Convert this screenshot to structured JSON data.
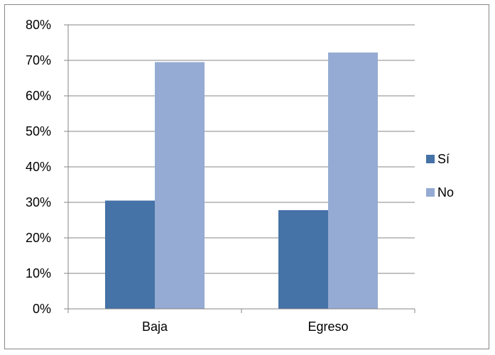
{
  "chart_data": {
    "type": "bar",
    "categories": [
      "Baja",
      "Egreso"
    ],
    "series": [
      {
        "name": "Sí",
        "values": [
          30.5,
          27.8
        ],
        "color": "#4572A7"
      },
      {
        "name": "No",
        "values": [
          69.5,
          72.2
        ],
        "color": "#95ABD3"
      }
    ],
    "y_ticks": [
      "0%",
      "10%",
      "20%",
      "30%",
      "40%",
      "50%",
      "60%",
      "70%",
      "80%"
    ],
    "ylim": [
      0,
      80
    ],
    "y_unit": "%",
    "grid": true,
    "legend_position": "right",
    "title": "",
    "xlabel": "",
    "ylabel": ""
  }
}
